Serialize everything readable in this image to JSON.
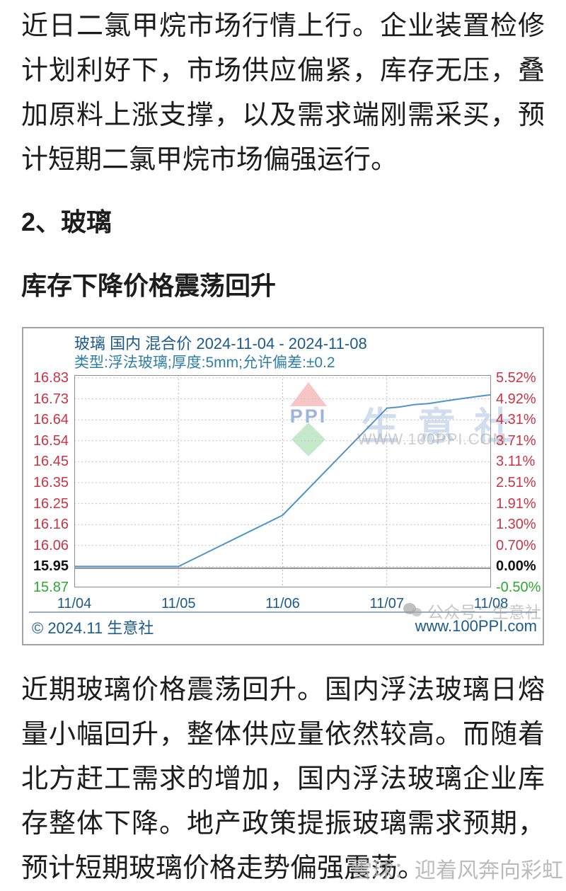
{
  "article": {
    "paragraph1": "近日二氯甲烷市场行情上行。企业装置检修计划利好下，市场供应偏紧，库存无压，叠加原料上涨支撑，以及需求端刚需采买，预计短期二氯甲烷市场偏强运行。",
    "section_heading": "2、玻璃",
    "sub_heading": "库存下降价格震荡回升",
    "paragraph2": "近期玻璃价格震荡回升。国内浮法玻璃日熔量小幅回升，整体供应量依然较高。而随着北方赶工需求的增加，国内浮法玻璃企业库存整体下降。地产政策提振玻璃需求预期，预计短期玻璃价格走势偏强震荡。",
    "page_watermark": "雪球：迎着风奔向彩虹"
  },
  "chart_data": {
    "type": "line",
    "title": "玻璃 国内 混合价 2024-11-04 - 2024-11-08",
    "subtitle": "类型:浮法玻璃;厚度:5mm;允许偏差:±0.2",
    "x_categories": [
      "11/04",
      "11/05",
      "11/06",
      "11/07",
      "11/08"
    ],
    "series": [
      {
        "name": "玻璃国内混合价",
        "x": [
          0,
          1,
          2,
          3,
          3.12,
          3.26,
          3.4,
          3.55,
          3.7,
          3.85,
          4
        ],
        "values": [
          15.95,
          15.95,
          16.2,
          16.69,
          16.695,
          16.705,
          16.71,
          16.72,
          16.73,
          16.74,
          16.75
        ]
      }
    ],
    "baseline": 15.95,
    "ylim": [
      15.87,
      16.83
    ],
    "grid": "dotted horizontal at every price tick, dotted vertical at every date",
    "legend": "none",
    "price_ticks": [
      {
        "label": "16.83",
        "tone": "up"
      },
      {
        "label": "16.73",
        "tone": "up"
      },
      {
        "label": "16.64",
        "tone": "up"
      },
      {
        "label": "16.54",
        "tone": "up"
      },
      {
        "label": "16.45",
        "tone": "up"
      },
      {
        "label": "16.35",
        "tone": "up"
      },
      {
        "label": "16.25",
        "tone": "up"
      },
      {
        "label": "16.16",
        "tone": "up"
      },
      {
        "label": "16.06",
        "tone": "up"
      },
      {
        "label": "15.95",
        "tone": "base"
      },
      {
        "label": "15.87",
        "tone": "down"
      }
    ],
    "pct_ticks": [
      {
        "label": "5.52%",
        "tone": "up"
      },
      {
        "label": "4.92%",
        "tone": "up"
      },
      {
        "label": "4.31%",
        "tone": "up"
      },
      {
        "label": "3.71%",
        "tone": "up"
      },
      {
        "label": "3.11%",
        "tone": "up"
      },
      {
        "label": "2.51%",
        "tone": "up"
      },
      {
        "label": "1.91%",
        "tone": "up"
      },
      {
        "label": "1.30%",
        "tone": "up"
      },
      {
        "label": "0.70%",
        "tone": "up"
      },
      {
        "label": "0.00%",
        "tone": "base"
      },
      {
        "label": "-0.50%",
        "tone": "down"
      }
    ],
    "colors": {
      "line": "#4f94c5",
      "up": "#cc3344",
      "down": "#2ea82e",
      "base": "#111111",
      "title": "#1c5a8c",
      "grid": "#c4c4c4",
      "zero_line": "#8f8f8f",
      "border": "#8f8f8f"
    },
    "copyright": "© 2024.11 生意社",
    "website": "www.100PPI.com",
    "watermark": {
      "logo": "PPI",
      "brand": "生意社",
      "url": "WWW.100PPI.COM",
      "wechat": "公众号：生意社"
    }
  }
}
